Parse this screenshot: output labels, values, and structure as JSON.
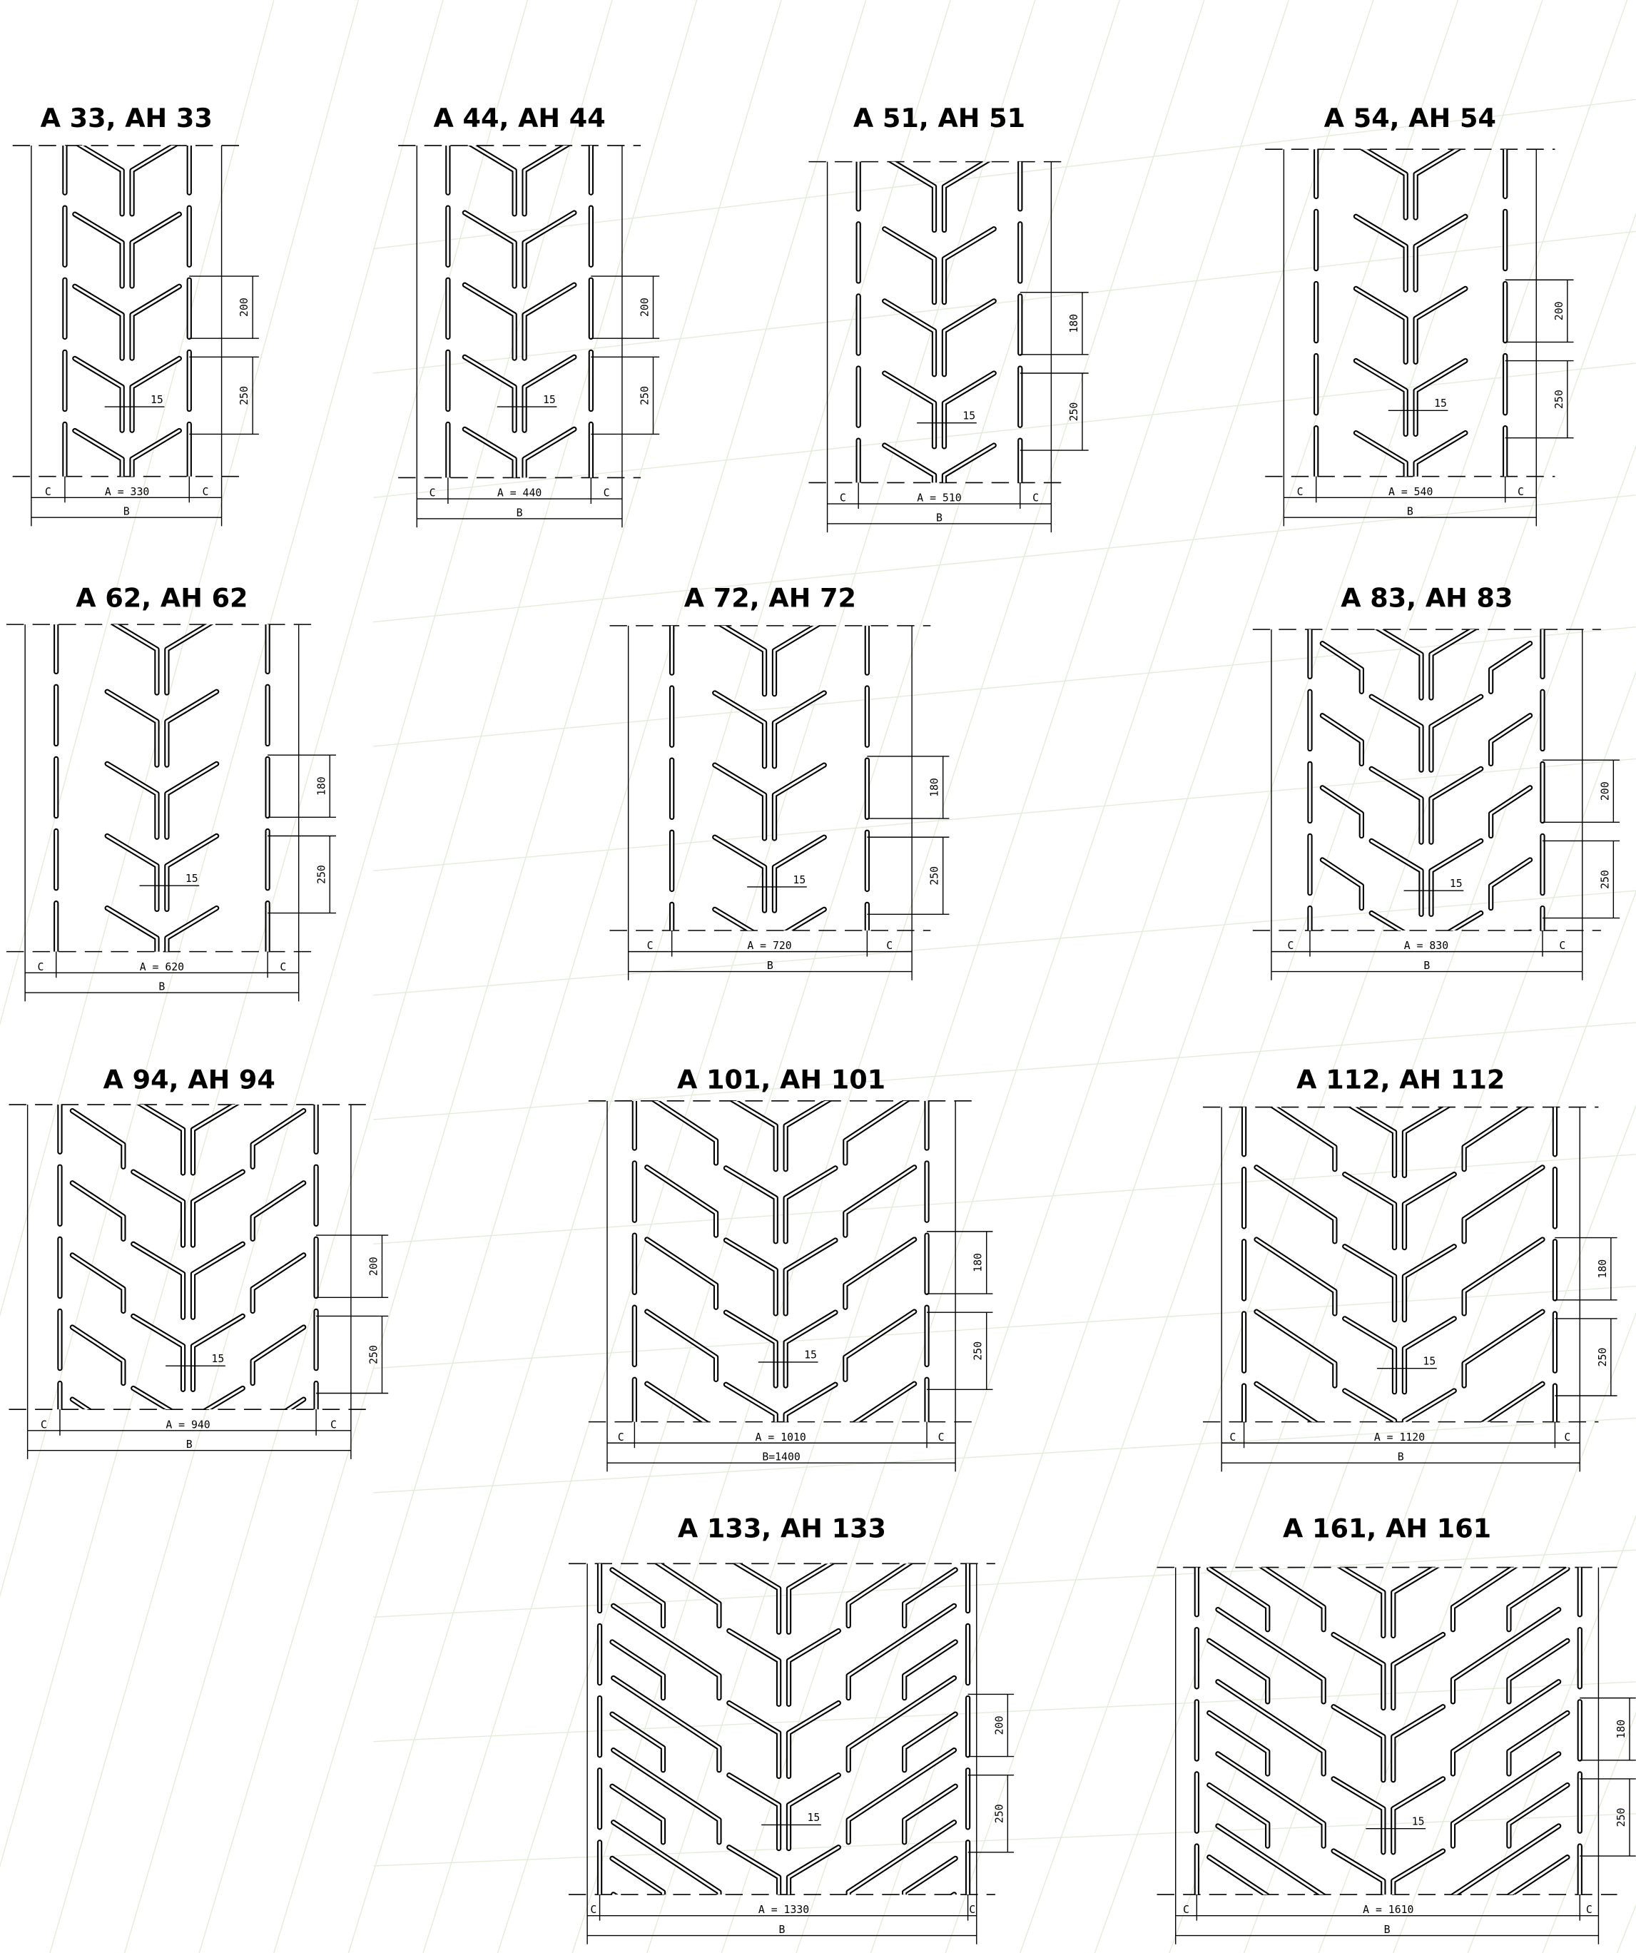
{
  "colors": {
    "line": "#000000",
    "background": "#ffffff",
    "watermark": "#e3ecd9"
  },
  "common": {
    "c_label": "C",
    "gap_label": "15"
  },
  "panels": [
    {
      "title": "A 33, AH 33",
      "a_label": "A  =  330",
      "b_label": "B",
      "pitch_1": "200",
      "pitch_2": "250"
    },
    {
      "title": "A 44, AH 44",
      "a_label": "A  =  440",
      "b_label": "B",
      "pitch_1": "200",
      "pitch_2": "250"
    },
    {
      "title": "A 51, AH 51",
      "a_label": "A  =  510",
      "b_label": "B",
      "pitch_1": "180",
      "pitch_2": "250"
    },
    {
      "title": "A 54, AH 54",
      "a_label": "A  =  540",
      "b_label": "B",
      "pitch_1": "200",
      "pitch_2": "250"
    },
    {
      "title": "A 62, AH 62",
      "a_label": "A  =  620",
      "b_label": "B",
      "pitch_1": "180",
      "pitch_2": "250"
    },
    {
      "title": "A 72, AH 72",
      "a_label": "A  =  720",
      "b_label": "B",
      "pitch_1": "180",
      "pitch_2": "250"
    },
    {
      "title": "A 83, AH 83",
      "a_label": "A  =  830",
      "b_label": "B",
      "pitch_1": "200",
      "pitch_2": "250"
    },
    {
      "title": "A 94, AH 94",
      "a_label": "A  =  940",
      "b_label": "B",
      "pitch_1": "200",
      "pitch_2": "250"
    },
    {
      "title": "A 101, AH 101",
      "a_label": "A  =  1010",
      "b_label": "B=1400",
      "pitch_1": "180",
      "pitch_2": "250"
    },
    {
      "title": "A 112, AH 112",
      "a_label": "A  =  1120",
      "b_label": "B",
      "pitch_1": "180",
      "pitch_2": "250"
    },
    {
      "title": "A 133, AH 133",
      "a_label": "A  =  1330",
      "b_label": "B",
      "pitch_1": "200",
      "pitch_2": "250"
    },
    {
      "title": "A 161, AH 161",
      "a_label": "A  =  1610",
      "b_label": "B",
      "pitch_1": "180",
      "pitch_2": "250"
    }
  ]
}
